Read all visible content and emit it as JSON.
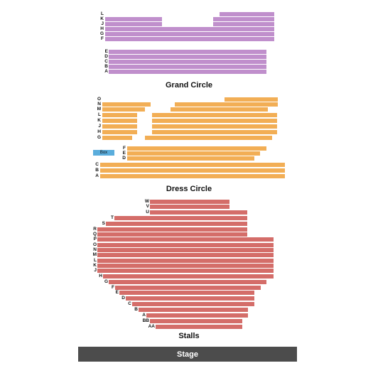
{
  "colors": {
    "grand_circle": "#c08fcc",
    "dress_circle": "#f2ae55",
    "stalls": "#d46d69",
    "box": "#5aaddc",
    "stage": "#4c4c4c"
  },
  "sections": {
    "grand_circle": {
      "title": "Grand Circle",
      "rows": [
        "L",
        "K",
        "J",
        "H",
        "G",
        "F",
        "E",
        "D",
        "C",
        "B",
        "A"
      ]
    },
    "dress_circle": {
      "title": "Dress Circle",
      "rows": [
        "O",
        "N",
        "M",
        "L",
        "K",
        "J",
        "H",
        "G",
        "F",
        "E",
        "D",
        "C",
        "B",
        "A"
      ],
      "box_label": "Box"
    },
    "stalls": {
      "title": "Stalls",
      "rows": [
        "W",
        "V",
        "U",
        "T",
        "S",
        "R",
        "Q",
        "P",
        "O",
        "N",
        "M",
        "L",
        "K",
        "J",
        "H",
        "G",
        "F",
        "E",
        "D",
        "C",
        "B",
        "A",
        "BB",
        "AA"
      ]
    }
  },
  "stage": {
    "label": "Stage"
  }
}
